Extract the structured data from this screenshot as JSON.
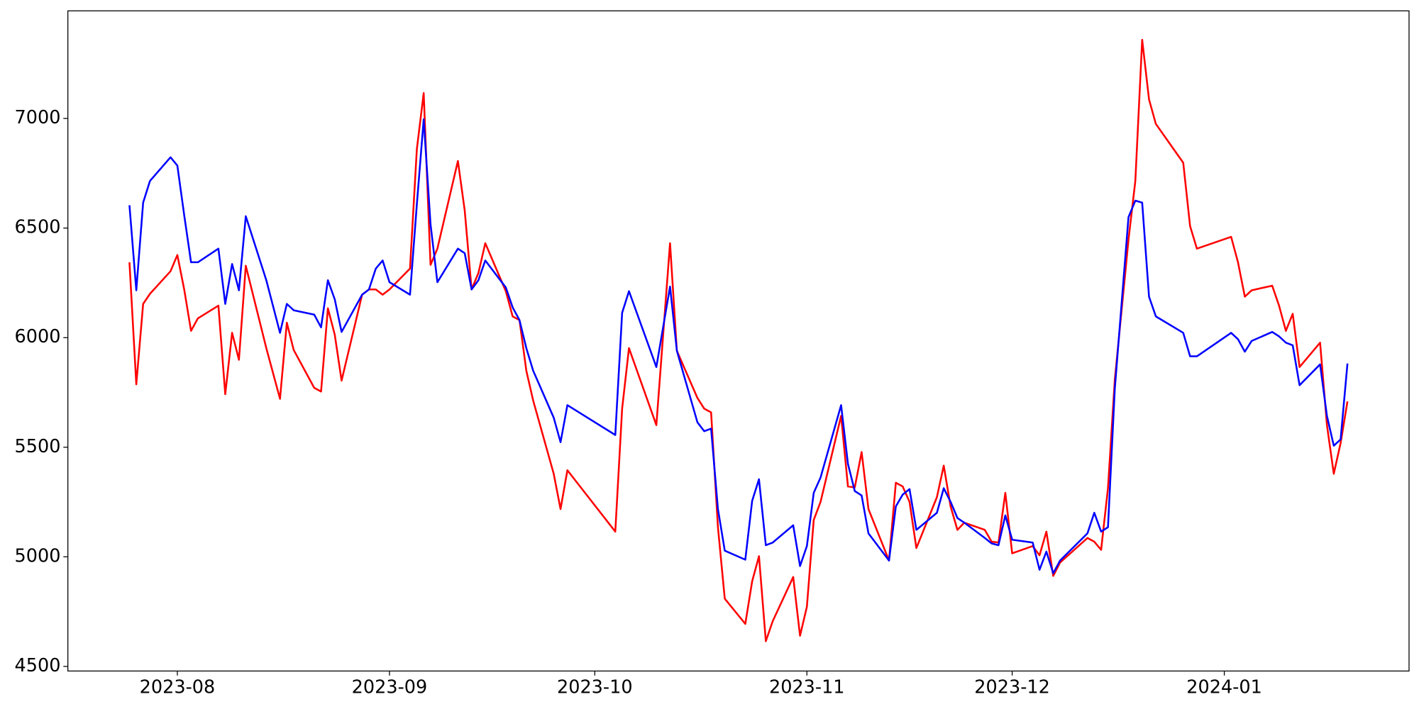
{
  "chart_data": {
    "type": "line",
    "x": [
      "2023-07-25",
      "2023-07-26",
      "2023-07-27",
      "2023-07-28",
      "2023-07-31",
      "2023-08-01",
      "2023-08-02",
      "2023-08-03",
      "2023-08-04",
      "2023-08-07",
      "2023-08-08",
      "2023-08-09",
      "2023-08-10",
      "2023-08-11",
      "2023-08-14",
      "2023-08-16",
      "2023-08-17",
      "2023-08-18",
      "2023-08-21",
      "2023-08-22",
      "2023-08-23",
      "2023-08-24",
      "2023-08-25",
      "2023-08-28",
      "2023-08-29",
      "2023-08-30",
      "2023-08-31",
      "2023-09-01",
      "2023-09-04",
      "2023-09-05",
      "2023-09-06",
      "2023-09-07",
      "2023-09-08",
      "2023-09-11",
      "2023-09-12",
      "2023-09-13",
      "2023-09-14",
      "2023-09-15",
      "2023-09-18",
      "2023-09-19",
      "2023-09-20",
      "2023-09-21",
      "2023-09-22",
      "2023-09-25",
      "2023-09-26",
      "2023-09-27",
      "2023-10-04",
      "2023-10-05",
      "2023-10-06",
      "2023-10-10",
      "2023-10-12",
      "2023-10-13",
      "2023-10-16",
      "2023-10-17",
      "2023-10-18",
      "2023-10-19",
      "2023-10-20",
      "2023-10-23",
      "2023-10-24",
      "2023-10-25",
      "2023-10-26",
      "2023-10-27",
      "2023-10-30",
      "2023-10-31",
      "2023-11-01",
      "2023-11-02",
      "2023-11-03",
      "2023-11-06",
      "2023-11-07",
      "2023-11-08",
      "2023-11-09",
      "2023-11-10",
      "2023-11-13",
      "2023-11-14",
      "2023-11-15",
      "2023-11-16",
      "2023-11-17",
      "2023-11-20",
      "2023-11-21",
      "2023-11-22",
      "2023-11-23",
      "2023-11-24",
      "2023-11-27",
      "2023-11-28",
      "2023-11-29",
      "2023-11-30",
      "2023-12-01",
      "2023-12-04",
      "2023-12-05",
      "2023-12-06",
      "2023-12-07",
      "2023-12-08",
      "2023-12-12",
      "2023-12-13",
      "2023-12-14",
      "2023-12-15",
      "2023-12-16",
      "2023-12-18",
      "2023-12-19",
      "2023-12-20",
      "2023-12-21",
      "2023-12-22",
      "2023-12-26",
      "2023-12-27",
      "2023-12-28",
      "2024-01-02",
      "2024-01-03",
      "2024-01-04",
      "2024-01-05",
      "2024-01-08",
      "2024-01-09",
      "2024-01-10",
      "2024-01-11",
      "2024-01-12",
      "2024-01-15",
      "2024-01-16",
      "2024-01-17",
      "2024-01-18",
      "2024-01-19"
    ],
    "series": [
      {
        "color": "#ff0000",
        "values": [
          6344,
          5787,
          6154,
          6200,
          6303,
          6377,
          6220,
          6031,
          6088,
          6146,
          5742,
          6022,
          5899,
          6328,
          5952,
          5721,
          6068,
          5944,
          5771,
          5754,
          6134,
          6014,
          5804,
          6196,
          6220,
          6220,
          6196,
          6220,
          6315,
          6860,
          7116,
          6332,
          6406,
          6806,
          6579,
          6220,
          6295,
          6431,
          6212,
          6097,
          6080,
          5849,
          5713,
          5379,
          5218,
          5395,
          5115,
          5676,
          5952,
          5601,
          6431,
          5940,
          5725,
          5676,
          5659,
          5135,
          4809,
          4694,
          4888,
          5003,
          4615,
          4706,
          4908,
          4640,
          4772,
          5168,
          5251,
          5643,
          5321,
          5317,
          5478,
          5218,
          4983,
          5338,
          5321,
          5251,
          5040,
          5272,
          5416,
          5230,
          5123,
          5156,
          5123,
          5069,
          5065,
          5292,
          5016,
          5049,
          5007,
          5115,
          4913,
          4974,
          5086,
          5069,
          5032,
          5313,
          5808,
          6447,
          6715,
          7359,
          7087,
          6975,
          6798,
          6509,
          6406,
          6460,
          6344,
          6187,
          6216,
          6237,
          6146,
          6031,
          6109,
          5866,
          5977,
          5601,
          5379,
          5519,
          5709
        ]
      },
      {
        "color": "#0000ff",
        "values": [
          6604,
          6216,
          6616,
          6715,
          6823,
          6785,
          6559,
          6344,
          6344,
          6406,
          6154,
          6336,
          6216,
          6554,
          6262,
          6022,
          6154,
          6125,
          6105,
          6047,
          6262,
          6175,
          6026,
          6196,
          6220,
          6315,
          6352,
          6253,
          6196,
          6608,
          6996,
          6517,
          6253,
          6406,
          6385,
          6220,
          6262,
          6352,
          6229,
          6138,
          6080,
          5952,
          5849,
          5635,
          5523,
          5692,
          5556,
          6113,
          6212,
          5866,
          6233,
          5940,
          5614,
          5573,
          5585,
          5218,
          5028,
          4987,
          5255,
          5354,
          5053,
          5065,
          5144,
          4958,
          5049,
          5292,
          5362,
          5692,
          5424,
          5300,
          5280,
          5107,
          4983,
          5230,
          5284,
          5309,
          5123,
          5201,
          5313,
          5251,
          5177,
          5156,
          5086,
          5061,
          5053,
          5189,
          5078,
          5065,
          4941,
          5024,
          4925,
          4983,
          5107,
          5201,
          5115,
          5135,
          5767,
          6550,
          6625,
          6616,
          6187,
          6097,
          6022,
          5915,
          5915,
          6022,
          5993,
          5936,
          5985,
          6026,
          6006,
          5977,
          5965,
          5783,
          5878,
          5643,
          5507,
          5536,
          5882
        ]
      }
    ],
    "xlim": [
      "2023-07-16",
      "2024-01-28"
    ],
    "xticks": [
      {
        "value": "2023-08-01",
        "label": "2023-08"
      },
      {
        "value": "2023-09-01",
        "label": "2023-09"
      },
      {
        "value": "2023-10-01",
        "label": "2023-10"
      },
      {
        "value": "2023-11-01",
        "label": "2023-11"
      },
      {
        "value": "2023-12-01",
        "label": "2023-12"
      },
      {
        "value": "2024-01-01",
        "label": "2024-01"
      }
    ],
    "ylim": [
      4479,
      7491
    ],
    "yticks": [
      4500,
      5000,
      5500,
      6000,
      6500,
      7000
    ],
    "grid": false
  }
}
